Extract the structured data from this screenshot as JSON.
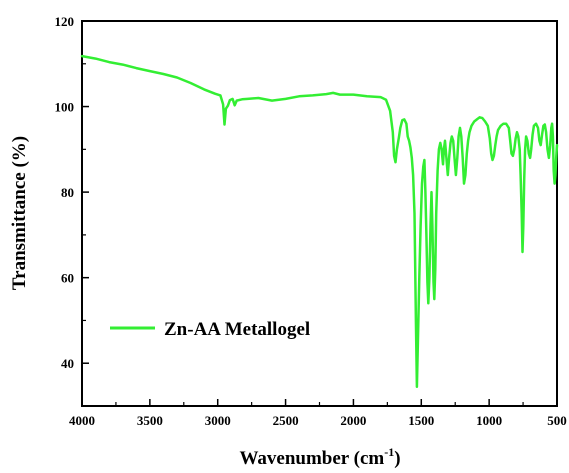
{
  "chart_data": {
    "type": "line",
    "xlabel": "Wavenumber (cm",
    "xlabel_sup": "-1",
    "xlabel_close": ")",
    "ylabel": "Transmittance (%)",
    "xlim": [
      4000,
      500
    ],
    "ylim": [
      30,
      120
    ],
    "x_ticks": [
      4000,
      3500,
      3000,
      2500,
      2000,
      1500,
      1000,
      500
    ],
    "x_tick_labels": [
      "4000",
      "3500",
      "3000",
      "2500",
      "2000",
      "1500",
      "1000",
      "500"
    ],
    "y_ticks": [
      40,
      60,
      80,
      100,
      120
    ],
    "y_tick_labels": [
      "40",
      "60",
      "80",
      "100",
      "120"
    ],
    "grid": false,
    "legend_position": "bottom-left",
    "series": [
      {
        "name": "Zn-AA Metallogel",
        "color": "#33ee33",
        "points": [
          [
            4000,
            111.8
          ],
          [
            3900,
            111.2
          ],
          [
            3800,
            110.4
          ],
          [
            3700,
            109.8
          ],
          [
            3600,
            109.0
          ],
          [
            3500,
            108.3
          ],
          [
            3400,
            107.6
          ],
          [
            3300,
            106.8
          ],
          [
            3200,
            105.5
          ],
          [
            3100,
            104.0
          ],
          [
            3020,
            103.0
          ],
          [
            2980,
            102.6
          ],
          [
            2960,
            100.5
          ],
          [
            2950,
            95.8
          ],
          [
            2940,
            99.5
          ],
          [
            2925,
            100.2
          ],
          [
            2910,
            101.5
          ],
          [
            2890,
            101.8
          ],
          [
            2875,
            100.3
          ],
          [
            2860,
            101.4
          ],
          [
            2820,
            101.7
          ],
          [
            2780,
            101.8
          ],
          [
            2700,
            102.0
          ],
          [
            2600,
            101.4
          ],
          [
            2500,
            101.8
          ],
          [
            2400,
            102.4
          ],
          [
            2300,
            102.6
          ],
          [
            2200,
            102.9
          ],
          [
            2150,
            103.2
          ],
          [
            2100,
            102.8
          ],
          [
            2000,
            102.8
          ],
          [
            1900,
            102.4
          ],
          [
            1800,
            102.2
          ],
          [
            1760,
            101.6
          ],
          [
            1730,
            99.0
          ],
          [
            1710,
            94.0
          ],
          [
            1700,
            88.5
          ],
          [
            1690,
            87.0
          ],
          [
            1680,
            90.0
          ],
          [
            1665,
            92.8
          ],
          [
            1655,
            95.0
          ],
          [
            1640,
            96.8
          ],
          [
            1625,
            97.0
          ],
          [
            1610,
            96.0
          ],
          [
            1600,
            93.0
          ],
          [
            1590,
            92.0
          ],
          [
            1580,
            90.5
          ],
          [
            1570,
            88.0
          ],
          [
            1560,
            84.0
          ],
          [
            1550,
            75.0
          ],
          [
            1540,
            50.0
          ],
          [
            1532,
            34.5
          ],
          [
            1525,
            45.0
          ],
          [
            1515,
            60.0
          ],
          [
            1505,
            72.0
          ],
          [
            1495,
            82.0
          ],
          [
            1485,
            86.0
          ],
          [
            1477,
            87.5
          ],
          [
            1470,
            80.0
          ],
          [
            1462,
            70.0
          ],
          [
            1455,
            59.0
          ],
          [
            1448,
            54.0
          ],
          [
            1440,
            60.0
          ],
          [
            1432,
            72.0
          ],
          [
            1425,
            80.0
          ],
          [
            1418,
            72.0
          ],
          [
            1410,
            59.0
          ],
          [
            1404,
            55.0
          ],
          [
            1397,
            62.0
          ],
          [
            1390,
            75.0
          ],
          [
            1380,
            85.0
          ],
          [
            1370,
            90.0
          ],
          [
            1360,
            91.5
          ],
          [
            1350,
            90.0
          ],
          [
            1340,
            86.5
          ],
          [
            1333,
            90.0
          ],
          [
            1325,
            92.0
          ],
          [
            1315,
            88.0
          ],
          [
            1305,
            84.0
          ],
          [
            1295,
            88.0
          ],
          [
            1285,
            91.5
          ],
          [
            1275,
            93.0
          ],
          [
            1265,
            92.0
          ],
          [
            1255,
            88.0
          ],
          [
            1245,
            84.0
          ],
          [
            1235,
            88.0
          ],
          [
            1225,
            93.0
          ],
          [
            1215,
            95.0
          ],
          [
            1205,
            93.0
          ],
          [
            1195,
            88.0
          ],
          [
            1185,
            82.0
          ],
          [
            1175,
            84.0
          ],
          [
            1165,
            89.0
          ],
          [
            1155,
            92.0
          ],
          [
            1145,
            94.0
          ],
          [
            1130,
            95.5
          ],
          [
            1110,
            96.5
          ],
          [
            1090,
            97.0
          ],
          [
            1070,
            97.5
          ],
          [
            1050,
            97.3
          ],
          [
            1030,
            96.5
          ],
          [
            1010,
            95.5
          ],
          [
            995,
            92.5
          ],
          [
            985,
            89.0
          ],
          [
            975,
            87.5
          ],
          [
            965,
            88.5
          ],
          [
            955,
            91.0
          ],
          [
            945,
            93.0
          ],
          [
            935,
            94.5
          ],
          [
            915,
            95.5
          ],
          [
            895,
            96.0
          ],
          [
            875,
            96.0
          ],
          [
            855,
            95.0
          ],
          [
            845,
            92.0
          ],
          [
            835,
            89.0
          ],
          [
            825,
            88.5
          ],
          [
            815,
            90.0
          ],
          [
            805,
            92.5
          ],
          [
            795,
            94.0
          ],
          [
            785,
            93.0
          ],
          [
            775,
            90.0
          ],
          [
            768,
            84.0
          ],
          [
            760,
            75.0
          ],
          [
            754,
            66.0
          ],
          [
            748,
            72.0
          ],
          [
            742,
            83.0
          ],
          [
            735,
            90.0
          ],
          [
            728,
            93.0
          ],
          [
            718,
            92.0
          ],
          [
            708,
            89.0
          ],
          [
            698,
            88.0
          ],
          [
            690,
            90.0
          ],
          [
            680,
            93.5
          ],
          [
            670,
            95.5
          ],
          [
            655,
            96.0
          ],
          [
            640,
            95.0
          ],
          [
            630,
            92.0
          ],
          [
            620,
            91.0
          ],
          [
            610,
            93.5
          ],
          [
            600,
            95.5
          ],
          [
            590,
            95.8
          ],
          [
            580,
            94.0
          ],
          [
            570,
            90.0
          ],
          [
            560,
            88.0
          ],
          [
            550,
            91.0
          ],
          [
            542,
            95.0
          ],
          [
            536,
            96.0
          ],
          [
            530,
            93.0
          ],
          [
            524,
            85.0
          ],
          [
            518,
            82.0
          ],
          [
            512,
            84.0
          ],
          [
            506,
            88.0
          ],
          [
            500,
            91.0
          ]
        ]
      }
    ]
  }
}
